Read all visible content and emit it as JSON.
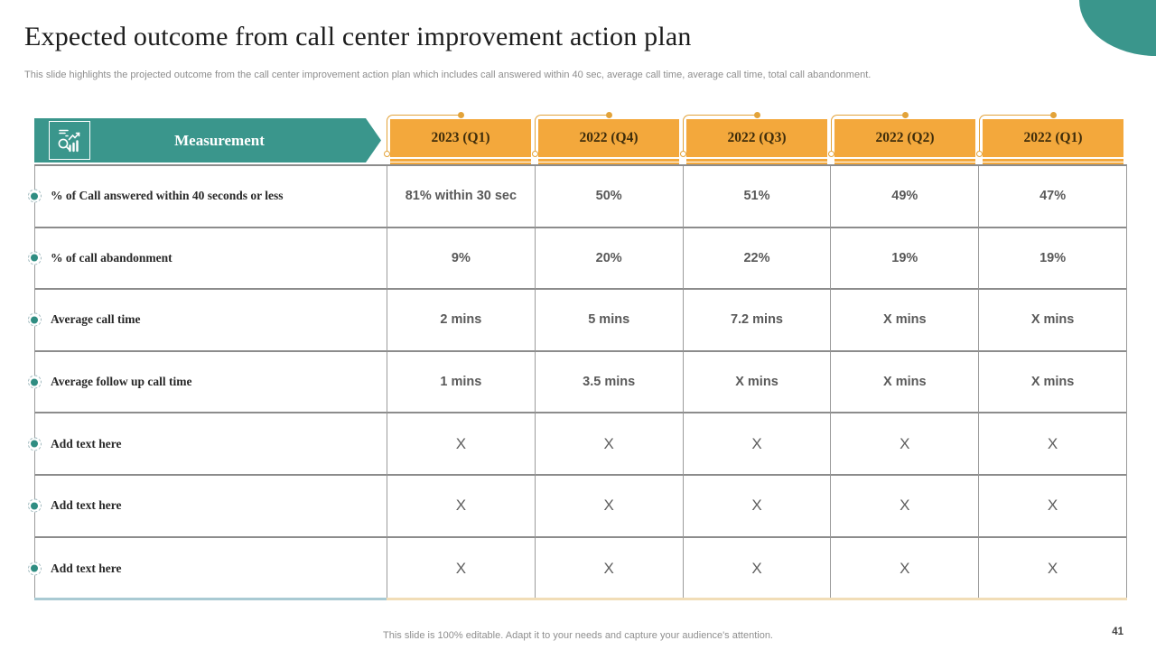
{
  "slide": {
    "title": "Expected outcome from call center improvement action plan",
    "subtitle": "This slide highlights the projected outcome from the call center improvement action plan which includes call answered within 40 sec, average call time,  average call time, total call abandonment.",
    "footer": "This slide is 100% editable. Adapt it to your needs and capture your audience's attention.",
    "page_number": "41"
  },
  "header": {
    "measurement_label": "Measurement",
    "icon": "chart-magnifier-icon",
    "columns": [
      "2023 (Q1)",
      "2022 (Q4)",
      "2022 (Q3)",
      "2022 (Q2)",
      "2022 (Q1)"
    ]
  },
  "table": {
    "rows": [
      {
        "label": "% of Call answered within  40 seconds or less",
        "values": [
          "81% within 30 sec",
          "50%",
          "51%",
          "49%",
          "47%"
        ]
      },
      {
        "label": "% of call abandonment",
        "values": [
          "9%",
          "20%",
          "22%",
          "19%",
          "19%"
        ]
      },
      {
        "label": "Average call time",
        "values": [
          "2 mins",
          "5 mins",
          "7.2 mins",
          "X mins",
          "X mins"
        ]
      },
      {
        "label": "Average follow up call time",
        "values": [
          "1 mins",
          "3.5 mins",
          "X mins",
          "X mins",
          "X mins"
        ]
      },
      {
        "label": "Add text here",
        "values": [
          "X",
          "X",
          "X",
          "X",
          "X"
        ]
      },
      {
        "label": "Add text here",
        "values": [
          "X",
          "X",
          "X",
          "X",
          "X"
        ]
      },
      {
        "label": "Add text here",
        "values": [
          "X",
          "X",
          "X",
          "X",
          "X"
        ]
      }
    ]
  },
  "colors": {
    "teal": "#3A968C",
    "orange": "#F3A83C",
    "deco_line": "#E3A339",
    "bottom_left_accent": "#A9CAD3",
    "bottom_right_accent": "#F1DDB7"
  }
}
